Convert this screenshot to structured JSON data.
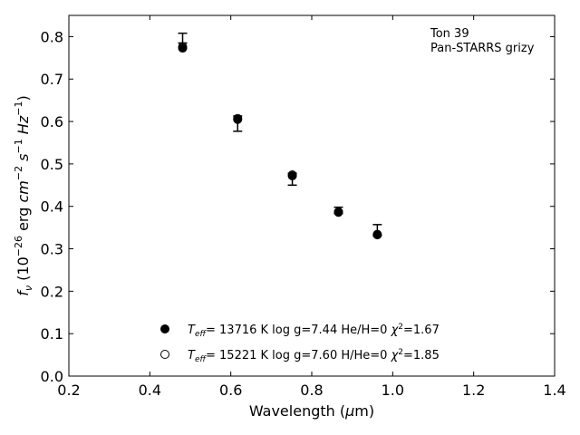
{
  "chart_data": {
    "type": "scatter",
    "annotation": [
      "Ton 39",
      "Pan-STARRS grizy"
    ],
    "xlabel": "Wavelength (μm)",
    "ylabel": "fν (10⁻²⁶ erg cm⁻² s⁻¹ Hz⁻¹)",
    "xlim": [
      0.2,
      1.4
    ],
    "ylim": [
      0.0,
      0.85
    ],
    "xticks": [
      "0.2",
      "0.4",
      "0.6",
      "0.8",
      "1.0",
      "1.2",
      "1.4"
    ],
    "yticks": [
      "0.0",
      "0.1",
      "0.2",
      "0.3",
      "0.4",
      "0.5",
      "0.6",
      "0.7",
      "0.8"
    ],
    "grid": false,
    "legend_position": "bottom-center",
    "observed": {
      "x": [
        0.481,
        0.617,
        0.752,
        0.866,
        0.962
      ],
      "y": [
        0.785,
        0.608,
        0.475,
        0.39,
        0.335
      ],
      "yerr_low": [
        0.785,
        0.577,
        0.45,
        0.383,
        0.331
      ],
      "yerr_high": [
        0.808,
        0.613,
        0.478,
        0.398,
        0.357
      ]
    },
    "series": [
      {
        "name": "Teff= 13716 K  log g=7.44  He/H=0  χ²=1.67",
        "marker": "filled-circle",
        "x": [
          0.481,
          0.617,
          0.752,
          0.866,
          0.962
        ],
        "y": [
          0.773,
          0.605,
          0.472,
          0.386,
          0.333
        ]
      },
      {
        "name": "Teff= 15221 K  log g=7.60  H/He=0  χ²=1.85",
        "marker": "open-circle",
        "x": [
          0.481,
          0.617,
          0.752,
          0.866,
          0.962
        ],
        "y": [
          0.776,
          0.607,
          0.474,
          0.387,
          0.334
        ]
      }
    ]
  }
}
